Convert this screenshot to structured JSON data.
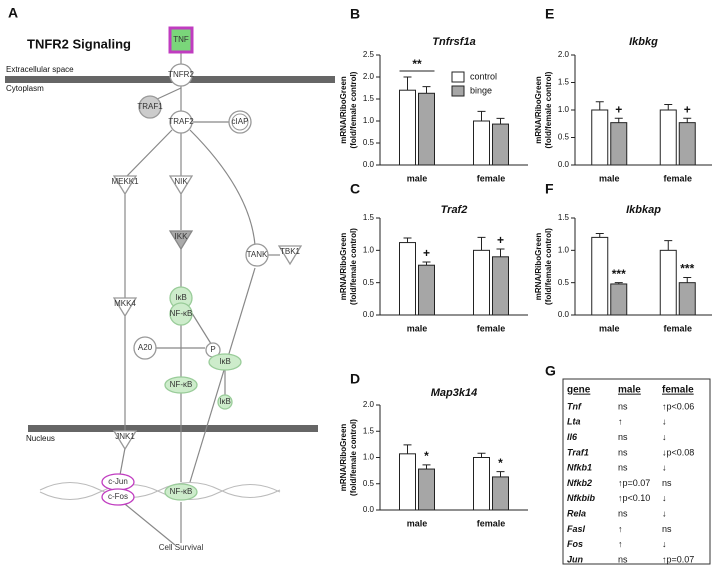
{
  "panel_a": {
    "label": "A",
    "title": "TNFR2 Signaling",
    "compartments": [
      "Extracellular space",
      "Cytoplasm",
      "Nucleus"
    ],
    "nodes": [
      "TNF",
      "TNFR2",
      "TRAF1",
      "TRAF2",
      "cIAP",
      "MEKK1",
      "NIK",
      "IKK",
      "TANK",
      "TBK1",
      "MKK4",
      "IκB",
      "NF-κB",
      "A20",
      "P",
      "IκB",
      "NF-κB",
      "IκB",
      "JNK1",
      "c-Jun",
      "c-Fos",
      "NF-κB",
      "Cell Survival"
    ]
  },
  "chart_data": [
    {
      "type": "bar",
      "panel": "B",
      "title": "Tnfrsf1a",
      "y_label": [
        "mRNA/RiboGreen",
        "(fold/female control)"
      ],
      "categories": [
        "male",
        "female"
      ],
      "series": [
        {
          "name": "control",
          "color": "#ffffff",
          "values": [
            1.7,
            1.0
          ],
          "errors": [
            0.3,
            0.22
          ]
        },
        {
          "name": "binge",
          "color": "#a6a6a6",
          "values": [
            1.63,
            0.93
          ],
          "errors": [
            0.15,
            0.13
          ]
        }
      ],
      "ylim": [
        0,
        2.5
      ],
      "yticks": [
        {
          "value": 0,
          "label": "0.0"
        },
        {
          "value": 0.5,
          "label": "0.5"
        },
        {
          "value": 1,
          "label": "1.0"
        },
        {
          "value": 1.5,
          "label": "1.5"
        },
        {
          "value": 2,
          "label": "2.0"
        },
        {
          "value": 2.5,
          "label": "2.5"
        }
      ],
      "legend": true,
      "annotations": [
        {
          "text": "**",
          "category": "male"
        }
      ]
    },
    {
      "type": "bar",
      "panel": "C",
      "title": "Traf2",
      "y_label": [
        "mRNA/RiboGreen",
        "(fold/female control)"
      ],
      "categories": [
        "male",
        "female"
      ],
      "series": [
        {
          "name": "control",
          "color": "#ffffff",
          "values": [
            1.12,
            1.0
          ],
          "errors": [
            0.07,
            0.2
          ]
        },
        {
          "name": "binge",
          "color": "#a6a6a6",
          "values": [
            0.77,
            0.9
          ],
          "errors": [
            0.05,
            0.12
          ]
        }
      ],
      "ylim": [
        0,
        1.5
      ],
      "yticks": [
        {
          "value": 0,
          "label": "0.0"
        },
        {
          "value": 0.5,
          "label": "0.5"
        },
        {
          "value": 1,
          "label": "1.0"
        },
        {
          "value": 1.5,
          "label": "1.5"
        }
      ],
      "legend": false,
      "annotations": [
        {
          "text": "+",
          "category": "male",
          "series": "binge"
        },
        {
          "text": "+",
          "category": "female",
          "series": "binge"
        }
      ]
    },
    {
      "type": "bar",
      "panel": "D",
      "title": "Map3k14",
      "y_label": [
        "mRNA/RiboGreen",
        "(fold/female control)"
      ],
      "categories": [
        "male",
        "female"
      ],
      "series": [
        {
          "name": "control",
          "color": "#ffffff",
          "values": [
            1.07,
            1.0
          ],
          "errors": [
            0.17,
            0.08
          ]
        },
        {
          "name": "binge",
          "color": "#a6a6a6",
          "values": [
            0.78,
            0.63
          ],
          "errors": [
            0.08,
            0.1
          ]
        }
      ],
      "ylim": [
        0,
        2
      ],
      "yticks": [
        {
          "value": 0,
          "label": "0.0"
        },
        {
          "value": 0.5,
          "label": "0.5"
        },
        {
          "value": 1,
          "label": "1.0"
        },
        {
          "value": 1.5,
          "label": "1.5"
        },
        {
          "value": 2,
          "label": "2.0"
        }
      ],
      "legend": false,
      "annotations": [
        {
          "text": "*",
          "category": "male",
          "series": "binge"
        },
        {
          "text": "*",
          "category": "female",
          "series": "binge"
        }
      ]
    },
    {
      "type": "bar",
      "panel": "E",
      "title": "Ikbkg",
      "y_label": [
        "mRNA/RiboGreen",
        "(fold/female control)"
      ],
      "categories": [
        "male",
        "female"
      ],
      "series": [
        {
          "name": "control",
          "color": "#ffffff",
          "values": [
            1.0,
            1.0
          ],
          "errors": [
            0.15,
            0.1
          ]
        },
        {
          "name": "binge",
          "color": "#a6a6a6",
          "values": [
            0.77,
            0.77
          ],
          "errors": [
            0.08,
            0.08
          ]
        }
      ],
      "ylim": [
        0,
        2
      ],
      "yticks": [
        {
          "value": 0,
          "label": "0.0"
        },
        {
          "value": 0.5,
          "label": "0.5"
        },
        {
          "value": 1,
          "label": "1.0"
        },
        {
          "value": 1.5,
          "label": "1.5"
        },
        {
          "value": 2,
          "label": "2.0"
        }
      ],
      "legend": false,
      "annotations": [
        {
          "text": "+",
          "category": "male",
          "series": "binge"
        },
        {
          "text": "+",
          "category": "female",
          "series": "binge"
        }
      ]
    },
    {
      "type": "bar",
      "panel": "F",
      "title": "Ikbkap",
      "y_label": [
        "mRNA/RiboGreen",
        "(fold/female control)"
      ],
      "categories": [
        "male",
        "female"
      ],
      "series": [
        {
          "name": "control",
          "color": "#ffffff",
          "values": [
            1.2,
            1.0
          ],
          "errors": [
            0.06,
            0.15
          ]
        },
        {
          "name": "binge",
          "color": "#a6a6a6",
          "values": [
            0.48,
            0.5
          ],
          "errors": [
            0.02,
            0.08
          ]
        }
      ],
      "ylim": [
        0,
        1.5
      ],
      "yticks": [
        {
          "value": 0,
          "label": "0.0"
        },
        {
          "value": 0.5,
          "label": "0.5"
        },
        {
          "value": 1,
          "label": "1.0"
        },
        {
          "value": 1.5,
          "label": "1.5"
        }
      ],
      "legend": false,
      "annotations": [
        {
          "text": "***",
          "category": "male",
          "series": "binge"
        },
        {
          "text": "***",
          "category": "female",
          "series": "binge"
        }
      ]
    }
  ],
  "panel_g": {
    "label": "G",
    "columns": [
      "gene",
      "male",
      "female"
    ],
    "rows": [
      [
        "Tnf",
        "ns",
        "↑p<0.06"
      ],
      [
        "Lta",
        "↑",
        "↓"
      ],
      [
        "Il6",
        "ns",
        "↓"
      ],
      [
        "Traf1",
        "ns",
        "↓p<0.08"
      ],
      [
        "Nfkb1",
        "ns",
        "↓"
      ],
      [
        "Nfkb2",
        "↑p=0.07",
        "ns"
      ],
      [
        "Nfkbib",
        "↑p<0.10",
        "↓"
      ],
      [
        "Rela",
        "ns",
        "↓"
      ],
      [
        "Fasl",
        "↑",
        "ns"
      ],
      [
        "Fos",
        "↑",
        "↓"
      ],
      [
        "Jun",
        "ns",
        "↑p=0.07"
      ]
    ]
  }
}
